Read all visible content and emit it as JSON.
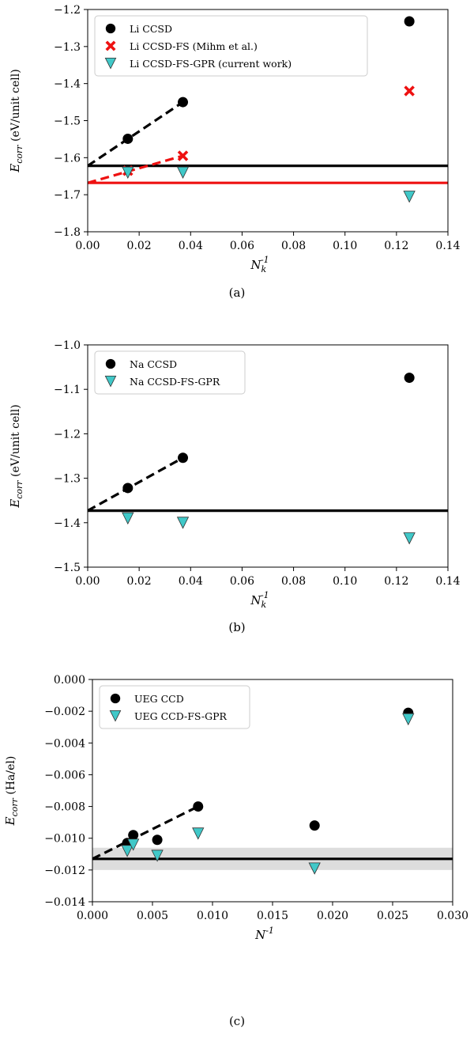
{
  "chart_data": [
    {
      "type": "scatter",
      "panel": "a",
      "caption": "(a)",
      "xlabel": "N_k^-1",
      "ylabel": "E_corr (eV/unit cell)",
      "xlim": [
        0,
        0.14
      ],
      "ylim": [
        -1.8,
        -1.2
      ],
      "xticks": [
        0.0,
        0.02,
        0.04,
        0.06,
        0.08,
        0.1,
        0.12,
        0.14
      ],
      "xtick_labels": [
        "0.00",
        "0.02",
        "0.04",
        "0.06",
        "0.08",
        "0.10",
        "0.12",
        "0.14"
      ],
      "yticks": [
        -1.8,
        -1.7,
        -1.6,
        -1.5,
        -1.4,
        -1.3,
        -1.2
      ],
      "ytick_labels": [
        "−1.8",
        "−1.7",
        "−1.6",
        "−1.5",
        "−1.4",
        "−1.3",
        "−1.2"
      ],
      "legend_position": "top-left",
      "series": [
        {
          "name": "Li CCSD",
          "marker": "circle",
          "color": "#000000",
          "x": [
            0.0156,
            0.037,
            0.125
          ],
          "y": [
            -1.549,
            -1.45,
            -1.232
          ]
        },
        {
          "name": "Li CCSD-FS (Mihm et al.)",
          "marker": "x",
          "color": "#ee1111",
          "x": [
            0.0156,
            0.037,
            0.125
          ],
          "y": [
            -1.635,
            -1.595,
            -1.42
          ]
        },
        {
          "name": "Li CCSD-FS-GPR (current work)",
          "marker": "triangle-down",
          "color": "#40c8c8",
          "x": [
            0.0156,
            0.037,
            0.125
          ],
          "y": [
            -1.64,
            -1.64,
            -1.705
          ]
        }
      ],
      "hlines": [
        {
          "y": -1.622,
          "color": "#000000"
        },
        {
          "y": -1.668,
          "color": "#ee1111"
        }
      ],
      "dashed_lines": [
        {
          "color": "#000000",
          "x": [
            0.0,
            0.037
          ],
          "y": [
            -1.622,
            -1.45
          ]
        },
        {
          "color": "#ee1111",
          "x": [
            0.0,
            0.037
          ],
          "y": [
            -1.668,
            -1.595
          ]
        }
      ]
    },
    {
      "type": "scatter",
      "panel": "b",
      "caption": "(b)",
      "xlabel": "N_k^-1",
      "ylabel": "E_corr (eV/unit cell)",
      "xlim": [
        0,
        0.14
      ],
      "ylim": [
        -1.5,
        -1.0
      ],
      "xticks": [
        0.0,
        0.02,
        0.04,
        0.06,
        0.08,
        0.1,
        0.12,
        0.14
      ],
      "xtick_labels": [
        "0.00",
        "0.02",
        "0.04",
        "0.06",
        "0.08",
        "0.10",
        "0.12",
        "0.14"
      ],
      "yticks": [
        -1.5,
        -1.4,
        -1.3,
        -1.2,
        -1.1,
        -1.0
      ],
      "ytick_labels": [
        "−1.5",
        "−1.4",
        "−1.3",
        "−1.2",
        "−1.1",
        "−1.0"
      ],
      "legend_position": "top-left",
      "series": [
        {
          "name": "Na CCSD",
          "marker": "circle",
          "color": "#000000",
          "x": [
            0.0156,
            0.037,
            0.125
          ],
          "y": [
            -1.322,
            -1.254,
            -1.074
          ]
        },
        {
          "name": "Na CCSD-FS-GPR",
          "marker": "triangle-down",
          "color": "#40c8c8",
          "x": [
            0.0156,
            0.037,
            0.125
          ],
          "y": [
            -1.39,
            -1.4,
            -1.435
          ]
        }
      ],
      "hlines": [
        {
          "y": -1.373,
          "color": "#000000"
        }
      ],
      "dashed_lines": [
        {
          "color": "#000000",
          "x": [
            0.0,
            0.037
          ],
          "y": [
            -1.373,
            -1.254
          ]
        }
      ]
    },
    {
      "type": "scatter",
      "panel": "c",
      "caption": "(c)",
      "xlabel": "N^-1",
      "ylabel": "E_corr (Ha/el)",
      "xlim": [
        0,
        0.03
      ],
      "ylim": [
        -0.014,
        0.0
      ],
      "xticks": [
        0.0,
        0.005,
        0.01,
        0.015,
        0.02,
        0.025,
        0.03
      ],
      "xtick_labels": [
        "0.000",
        "0.005",
        "0.010",
        "0.015",
        "0.020",
        "0.025",
        "0.030"
      ],
      "yticks": [
        -0.014,
        -0.012,
        -0.01,
        -0.008,
        -0.006,
        -0.004,
        -0.002,
        0.0
      ],
      "ytick_labels": [
        "−0.014",
        "−0.012",
        "−0.010",
        "−0.008",
        "−0.006",
        "−0.004",
        "−0.002",
        "0.000"
      ],
      "legend_position": "top-left",
      "series": [
        {
          "name": "UEG CCD",
          "marker": "circle",
          "color": "#000000",
          "x": [
            0.0029,
            0.0034,
            0.0054,
            0.0088,
            0.0185,
            0.0263
          ],
          "y": [
            -0.0103,
            -0.0098,
            -0.0101,
            -0.008,
            -0.0092,
            -0.0021
          ]
        },
        {
          "name": "UEG CCD-FS-GPR",
          "marker": "triangle-down",
          "color": "#40c8c8",
          "x": [
            0.0029,
            0.0034,
            0.0054,
            0.0088,
            0.0185,
            0.0263
          ],
          "y": [
            -0.0108,
            -0.0104,
            -0.0111,
            -0.0097,
            -0.0119,
            -0.0025
          ]
        }
      ],
      "hlines": [
        {
          "y": -0.0113,
          "color": "#000000"
        }
      ],
      "band": {
        "y0": -0.012,
        "y1": -0.0106,
        "color": "#dddddd"
      },
      "dashed_lines": [
        {
          "color": "#000000",
          "x": [
            0.0,
            0.0088
          ],
          "y": [
            -0.0113,
            -0.008
          ]
        }
      ]
    }
  ]
}
